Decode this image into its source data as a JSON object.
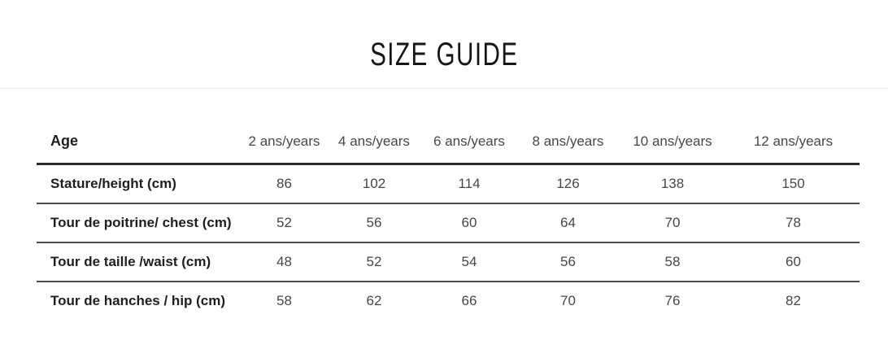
{
  "page": {
    "title": "SIZE GUIDE"
  },
  "colors": {
    "background": "#ffffff",
    "title_text": "#161616",
    "label_text": "#1f1f1f",
    "value_text": "#474747",
    "header_rule": "#2b2b2b",
    "row_rule": "#4c4c4c",
    "section_divider": "#ececec"
  },
  "size_table": {
    "header": [
      "Age",
      "2 ans/years",
      "4 ans/years",
      "6 ans/years",
      "8 ans/years",
      "10 ans/years",
      "12 ans/years"
    ],
    "rows": [
      {
        "label": "Stature/height (cm)",
        "values": [
          "86",
          "102",
          "114",
          "126",
          "138",
          "150"
        ]
      },
      {
        "label": "Tour de poitrine/ chest (cm)",
        "values": [
          "52",
          "56",
          "60",
          "64",
          "70",
          "78"
        ]
      },
      {
        "label": "Tour de taille /waist (cm)",
        "values": [
          "48",
          "52",
          "54",
          "56",
          "58",
          "60"
        ]
      },
      {
        "label": "Tour de hanches / hip (cm)",
        "values": [
          "58",
          "62",
          "66",
          "70",
          "76",
          "82"
        ]
      }
    ]
  }
}
